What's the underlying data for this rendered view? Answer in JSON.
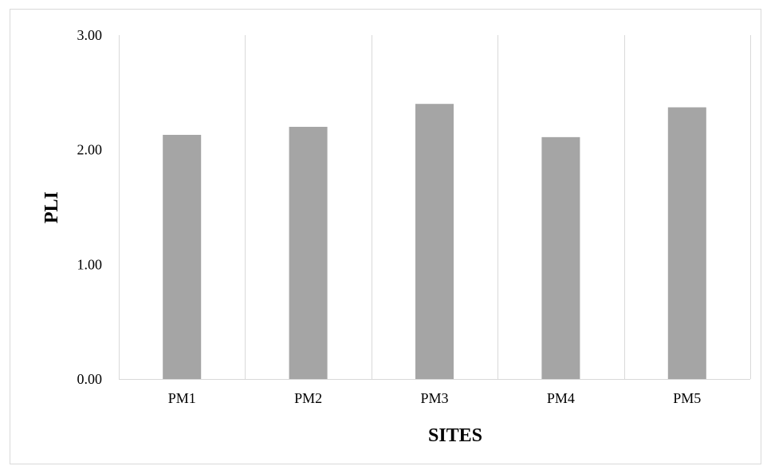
{
  "chart_data": {
    "type": "bar",
    "title": "",
    "xlabel": "SITES",
    "ylabel": "PLI",
    "categories": [
      "PM1",
      "PM2",
      "PM3",
      "PM4",
      "PM5"
    ],
    "values": [
      2.13,
      2.2,
      2.4,
      2.11,
      2.37
    ],
    "ylim": [
      0,
      3
    ],
    "yticks": [
      "0.00",
      "1.00",
      "2.00",
      "3.00"
    ],
    "grid": "vertical category separators",
    "legend": "none",
    "colors": {
      "bar": "#a5a5a5",
      "grid": "#d9d9d9",
      "frame": "#d9d9d9",
      "text": "#000000"
    }
  }
}
